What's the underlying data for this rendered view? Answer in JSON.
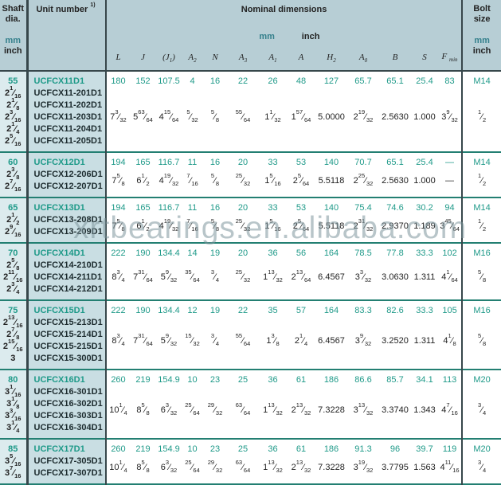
{
  "watermark": "xrtbearings.en.alibaba.com",
  "colors": {
    "header_bg": "#b7ced5",
    "shaft_col_bg": "#dcebee",
    "unit_col_bg": "#c9dee3",
    "value_teal": "#1f9a89",
    "rule_teal": "#237f72",
    "rule_dark": "#37474b"
  },
  "header": {
    "shaft_dia": {
      "line1": "Shaft",
      "line2": "dia.",
      "mm": "mm",
      "inch": "inch"
    },
    "unit_number": "Unit number",
    "unit_number_note": "1)",
    "nominal_title": "Nominal dimensions",
    "nominal_mm": "mm",
    "nominal_inch": "inch",
    "bolt": {
      "line1": "Bolt",
      "line2": "size",
      "mm": "mm",
      "inch": "inch"
    },
    "columns": [
      "L",
      "J",
      "(J1)",
      "A2",
      "N",
      "A3",
      "A1",
      "A",
      "H2",
      "A0",
      "B",
      "S",
      "F min"
    ]
  },
  "blocks": [
    {
      "shaft_mm": "55",
      "shaft_inch": [
        "2 1/16",
        "2 1/8",
        "2 3/16",
        "2 1/4",
        "2 5/16"
      ],
      "units": [
        "UCFCX11D1",
        "UCFCX11-201D1",
        "UCFCX11-202D1",
        "UCFCX11-203D1",
        "UCFCX11-204D1",
        "UCFCX11-205D1"
      ],
      "mm": [
        "180",
        "152",
        "107.5",
        "4",
        "16",
        "22",
        "26",
        "48",
        "127",
        "65.7",
        "65.1",
        "25.4",
        "83"
      ],
      "inch": [
        "7 3/32",
        "5 63/64",
        "4 15/64",
        "5/32",
        "5/8",
        "55/64",
        "1 1/32",
        "1 57/64",
        "5.0000",
        "2 19/32",
        "2.5630",
        "1.000",
        "3 9/32"
      ],
      "bolt_mm": "M14",
      "bolt_inch": "1/2"
    },
    {
      "shaft_mm": "60",
      "shaft_inch": [
        "2 3/8",
        "2 7/16"
      ],
      "units": [
        "UCFCX12D1",
        "UCFCX12-206D1",
        "UCFCX12-207D1"
      ],
      "mm": [
        "194",
        "165",
        "116.7",
        "11",
        "16",
        "20",
        "33",
        "53",
        "140",
        "70.7",
        "65.1",
        "25.4",
        "—"
      ],
      "inch": [
        "7 5/8",
        "6 1/2",
        "4 19/32",
        "7/16",
        "5/8",
        "25/32",
        "1 5/16",
        "2 5/64",
        "5.5118",
        "2 25/32",
        "2.5630",
        "1.000",
        "—"
      ],
      "bolt_mm": "M14",
      "bolt_inch": "1/2"
    },
    {
      "shaft_mm": "65",
      "shaft_inch": [
        "2 1/2",
        "2 9/16"
      ],
      "units": [
        "UCFCX13D1",
        "UCFCX13-208D1",
        "UCFCX13-209D1"
      ],
      "mm": [
        "194",
        "165",
        "116.7",
        "11",
        "16",
        "20",
        "33",
        "53",
        "140",
        "75.4",
        "74.6",
        "30.2",
        "94"
      ],
      "inch": [
        "7 5/8",
        "6 1/2",
        "4 19/32",
        "7/16",
        "5/8",
        "25/32",
        "1 5/16",
        "2 5/64",
        "5.5118",
        "2 31/32",
        "2.9370",
        "1.189",
        "3 45/64"
      ],
      "bolt_mm": "M14",
      "bolt_inch": "1/2"
    },
    {
      "shaft_mm": "70",
      "shaft_inch": [
        "2 5/8",
        "2 11/16",
        "2 3/4"
      ],
      "units": [
        "UCFCX14D1",
        "UCFCX14-210D1",
        "UCFCX14-211D1",
        "UCFCX14-212D1"
      ],
      "mm": [
        "222",
        "190",
        "134.4",
        "14",
        "19",
        "20",
        "36",
        "56",
        "164",
        "78.5",
        "77.8",
        "33.3",
        "102"
      ],
      "inch": [
        "8 3/4",
        "7 31/64",
        "5 9/32",
        "35/64",
        "3/4",
        "25/32",
        "1 13/32",
        "2 13/64",
        "6.4567",
        "3 3/32",
        "3.0630",
        "1.311",
        "4 1/64"
      ],
      "bolt_mm": "M16",
      "bolt_inch": "5/8"
    },
    {
      "shaft_mm": "75",
      "shaft_inch": [
        "2 13/16",
        "2 7/8",
        "2 15/16",
        "3"
      ],
      "units": [
        "UCFCX15D1",
        "UCFCX15-213D1",
        "UCFCX15-214D1",
        "UCFCX15-215D1",
        "UCFCX15-300D1"
      ],
      "mm": [
        "222",
        "190",
        "134.4",
        "12",
        "19",
        "22",
        "35",
        "57",
        "164",
        "83.3",
        "82.6",
        "33.3",
        "105"
      ],
      "inch": [
        "8 3/4",
        "7 31/64",
        "5 9/32",
        "15/32",
        "3/4",
        "55/64",
        "1 3/8",
        "2 1/4",
        "6.4567",
        "3 9/32",
        "3.2520",
        "1.311",
        "4 1/8"
      ],
      "bolt_mm": "M16",
      "bolt_inch": "5/8"
    },
    {
      "shaft_mm": "80",
      "shaft_inch": [
        "3 1/16",
        "3 1/8",
        "3 3/16",
        "3 1/4"
      ],
      "units": [
        "UCFCX16D1",
        "UCFCX16-301D1",
        "UCFCX16-302D1",
        "UCFCX16-303D1",
        "UCFCX16-304D1"
      ],
      "mm": [
        "260",
        "219",
        "154.9",
        "10",
        "23",
        "25",
        "36",
        "61",
        "186",
        "86.6",
        "85.7",
        "34.1",
        "113"
      ],
      "inch": [
        "10 1/4",
        "8 5/8",
        "6 3/32",
        "25/64",
        "29/32",
        "63/64",
        "1 13/32",
        "2 13/32",
        "7.3228",
        "3 13/32",
        "3.3740",
        "1.343",
        "4 7/16"
      ],
      "bolt_mm": "M20",
      "bolt_inch": "3/4"
    },
    {
      "shaft_mm": "85",
      "shaft_inch": [
        "3 5/16",
        "3 7/16"
      ],
      "units": [
        "UCFCX17D1",
        "UCFCX17-305D1",
        "UCFCX17-307D1"
      ],
      "mm": [
        "260",
        "219",
        "154.9",
        "10",
        "23",
        "25",
        "36",
        "61",
        "186",
        "91.3",
        "96",
        "39.7",
        "119"
      ],
      "inch": [
        "10 1/4",
        "8 5/8",
        "6 3/32",
        "25/64",
        "29/32",
        "63/64",
        "1 13/32",
        "2 13/32",
        "7.3228",
        "3 19/32",
        "3.7795",
        "1.563",
        "4 11/16"
      ],
      "bolt_mm": "M20",
      "bolt_inch": "3/4"
    }
  ]
}
